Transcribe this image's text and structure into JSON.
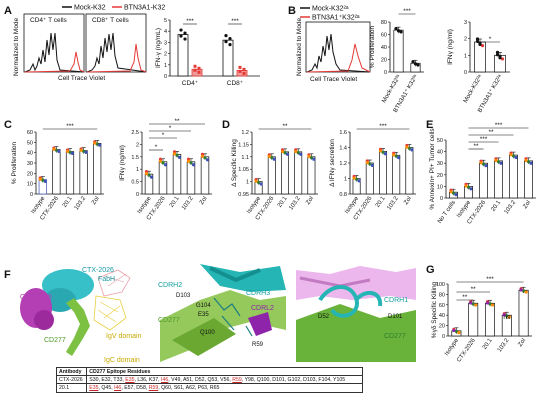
{
  "panels": {
    "A": "A",
    "B": "B",
    "C": "C",
    "D": "D",
    "E": "E",
    "F": "F",
    "G": "G"
  },
  "A": {
    "legend": [
      "Mock-K32",
      "BTN3A1-K32"
    ],
    "hist_titles": [
      "CD4⁺ T cells",
      "CD8⁺ T cells"
    ],
    "ylabel": "Normalized to Mode",
    "xlabel": "Cell Trace Violet",
    "bar_ylabel": "IFN-γ (ng/mL)",
    "sig": [
      "***",
      "***"
    ]
  },
  "B": {
    "legend": [
      "Mock-K32²ᵃ",
      "BTN3A1⁺K32²ᵃ"
    ],
    "ylabel": "Normalized to Mode",
    "xlabel": "Cell Trace Violet",
    "sig": [
      "***",
      "*"
    ]
  },
  "C": {
    "sig1": "***",
    "sig2": [
      "**",
      "*",
      "*"
    ]
  },
  "D": {
    "sig1": "**",
    "sig2": "***"
  },
  "E": {
    "sig": [
      "***",
      "**",
      "***",
      "**"
    ]
  },
  "F": {
    "labels": {
      "fabh": "CTX-2026 FabH",
      "fabl": "CTX-2026 FabL",
      "cd277": "CD277",
      "igv": "IgV domain",
      "igc": "IgC domain"
    },
    "mid": {
      "cdrh2": "CDRH2",
      "cdrh3": "CDRH3",
      "cdrl2": "CDRL2",
      "d103": "D103",
      "g104": "G104",
      "e35": "E35",
      "cd277": "CD277",
      "q100": "Q100",
      "r59": "R59"
    },
    "right": {
      "d52": "D52",
      "cdrh1": "CDRH1",
      "d101": "D101",
      "cd277": "CD277"
    },
    "table": {
      "headers": [
        "Antibody",
        "CD277 Epitope Residues"
      ],
      "rows": [
        {
          "antibody": "CTX-2026",
          "pre1": "S30, E32, T33, ",
          "r1": "E35",
          "mid1": ", L36, K37, ",
          "r2": "I46",
          "mid2": ", V49, A51, D52, Q53, V56, ",
          "r3": "R59",
          "post": ", Y98, Q100, D101, G102, D103, F104, Y105"
        },
        {
          "antibody": "20.1",
          "pre1": "",
          "r1": "E35",
          "mid1": ", Q45, ",
          "r2": "I46",
          "mid2": ", E57, D58, ",
          "r3": "R59",
          "post": ", Q60, S61, A62, P63, R65"
        }
      ]
    }
  },
  "G": {
    "sig": [
      "**",
      "**",
      "ns",
      "***"
    ]
  },
  "common": {
    "percent_proliferation": "% Proliferation",
    "ifng_ngml": "IFNγ (ng/ml)",
    "delta_specific_killing": "Δ Specific Killing",
    "delta_ifng_secretion": "Δ IFNγ secretion",
    "annexin": "% Annexin+ PI+ Tumor cells",
    "gd_specific_killing": "%γδ Specific Killing",
    "cd4": "CD4⁺",
    "cd8": "CD8⁺",
    "isotype": "Isotype",
    "ctx": "CTX-2026",
    "ab201": "20.1",
    "ab1032": "103.2",
    "zol": "Zol",
    "no_t": "No T cells",
    "mock": "Mock-K32²ᵃ",
    "btn": "BTN3A1⁺ K32²ᵃ"
  },
  "chart_data": [
    {
      "panel": "A",
      "type": "bar",
      "categories": [
        "CD4⁺",
        "CD8⁺"
      ],
      "series": [
        {
          "name": "Mock-K32",
          "values": [
            3.7,
            3.2
          ]
        },
        {
          "name": "BTN3A1-K32",
          "values": [
            0.6,
            0.5
          ]
        }
      ],
      "ylabel": "IFN-γ (ng/mL)",
      "ylim": [
        0,
        5
      ],
      "ticks": [
        0,
        1,
        2,
        3,
        4,
        5
      ]
    },
    {
      "panel": "B",
      "type": "bar",
      "categories": [
        "Mock-K32²ᵃ",
        "BTN3A1⁺ K32²ᵃ"
      ],
      "values": [
        67,
        14
      ],
      "ylabel": "% Proliferation",
      "ylim": [
        0,
        80
      ],
      "ticks": [
        0,
        20,
        40,
        60,
        80
      ]
    },
    {
      "panel": "B",
      "type": "bar",
      "categories": [
        "Mock-K32²ᵃ",
        "BTN3A1⁺ K32²ᵃ"
      ],
      "values": [
        1.8,
        1.0
      ],
      "ylabel": "IFNγ (ng/ml)",
      "ylim": [
        0,
        3
      ],
      "ticks": [
        0,
        1,
        2,
        3
      ]
    },
    {
      "panel": "C",
      "type": "bar",
      "categories": [
        "Isotype",
        "CTX-2026",
        "20.1",
        "103.2",
        "Zol"
      ],
      "values": [
        14,
        43,
        41,
        42,
        49
      ],
      "ylabel": "% Proliferation",
      "ylim": [
        0,
        60
      ],
      "ticks": [
        0,
        10,
        20,
        30,
        40,
        50,
        60
      ]
    },
    {
      "panel": "C",
      "type": "bar",
      "categories": [
        "Isotype",
        "CTX-2026",
        "20.1",
        "103.2",
        "Zol"
      ],
      "values": [
        0.8,
        1.3,
        1.6,
        1.3,
        1.5
      ],
      "ylabel": "IFNγ (ng/ml)",
      "ylim": [
        0,
        2.5
      ],
      "ticks": [
        0,
        0.5,
        1.0,
        1.5,
        2.0,
        2.5
      ]
    },
    {
      "panel": "D",
      "type": "bar",
      "categories": [
        "Isotype",
        "CTX-2026",
        "20.1",
        "103.2",
        "Zol"
      ],
      "values": [
        1.0,
        1.1,
        1.12,
        1.12,
        1.1
      ],
      "ylabel": "Δ Specific Killing",
      "ylim": [
        0.95,
        1.2
      ],
      "ticks": [
        0.95,
        1.0,
        1.05,
        1.1,
        1.15,
        1.2
      ]
    },
    {
      "panel": "D",
      "type": "bar",
      "categories": [
        "Isotype",
        "CTX-2026",
        "20.1",
        "103.2",
        "Zol"
      ],
      "values": [
        1.0,
        1.2,
        1.35,
        1.3,
        1.4
      ],
      "ylabel": "Δ IFNγ secretion",
      "ylim": [
        0.8,
        1.6
      ],
      "ticks": [
        0.8,
        1.0,
        1.2,
        1.4,
        1.6
      ]
    },
    {
      "panel": "E",
      "type": "bar",
      "categories": [
        "No T cells",
        "Isotype",
        "CTX-2026",
        "20.1",
        "103.2",
        "Zol"
      ],
      "values": [
        5,
        10,
        30,
        32,
        37,
        32
      ],
      "ylabel": "% Annexin+ PI+ Tumor cells",
      "ylim": [
        0,
        50
      ],
      "ticks": [
        0,
        10,
        20,
        30,
        40,
        50
      ]
    },
    {
      "panel": "G",
      "type": "bar",
      "categories": [
        "Isotype",
        "CTX-2026",
        "20.1",
        "103.2",
        "Zol"
      ],
      "values": [
        10,
        63,
        63,
        40,
        88
      ],
      "ylabel": "%γδ Specific Killing",
      "ylim": [
        0,
        100
      ],
      "ticks": [
        0,
        20,
        40,
        60,
        80,
        100
      ]
    }
  ],
  "colors": {
    "black": "#111111",
    "red": "#e53935",
    "pink": "#ef5350",
    "blue": "#3f51b5",
    "green": "#2e7d32",
    "orange": "#fb8c00",
    "purple": "#8e24aa",
    "grey": "#777777"
  }
}
